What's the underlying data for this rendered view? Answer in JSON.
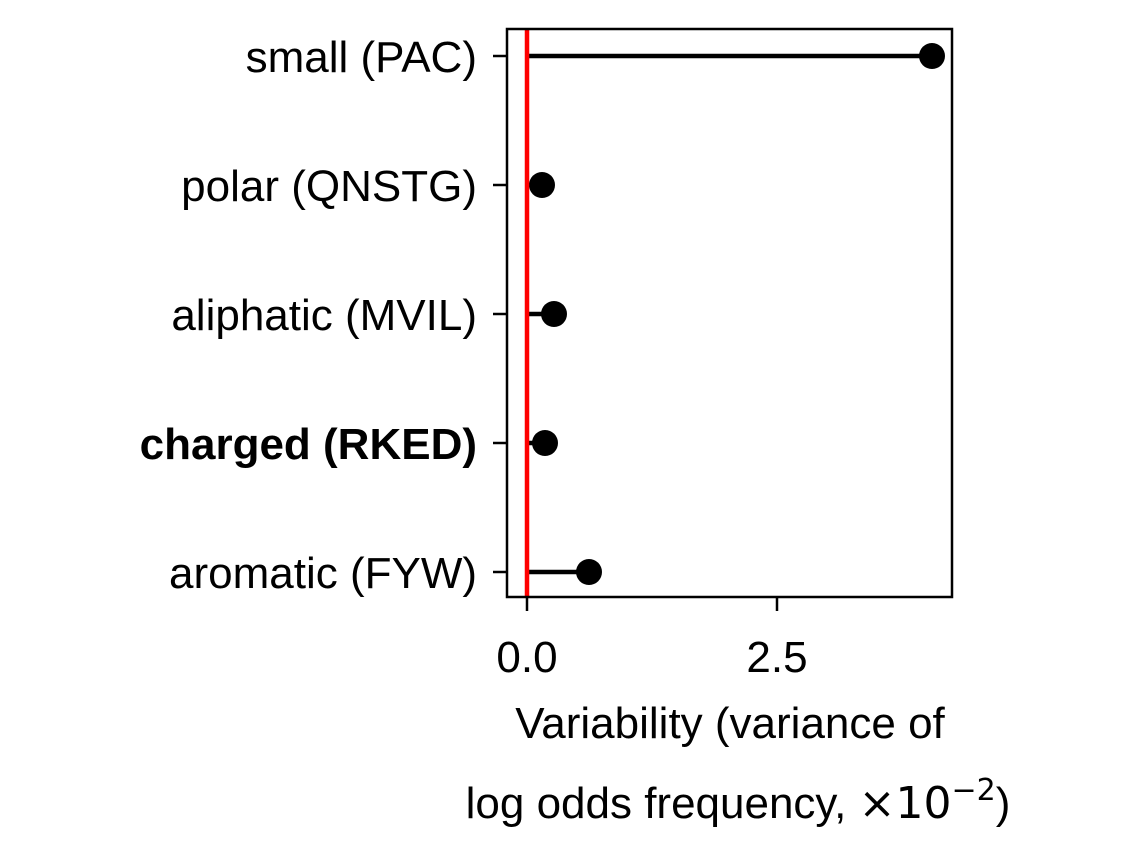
{
  "chart_data": {
    "type": "scatter",
    "style": "lollipop",
    "orientation": "horizontal",
    "categories": [
      "small (PAC)",
      "polar (QNSTG)",
      "aliphatic (MVIL)",
      "charged (RKED)",
      "aromatic (FYW)"
    ],
    "values": [
      4.05,
      0.15,
      0.27,
      0.18,
      0.62
    ],
    "highlight_category": "charged (RKED)",
    "highlight_color": "#a8479a",
    "marker_color": "#000000",
    "reference_line": {
      "x": 0,
      "color": "#ff0000"
    },
    "xlabel": "Variability (variance of",
    "xlabel_line2_prefix": "log odds frequency, ",
    "xlabel_line2_math": "×10",
    "xlabel_line2_exponent": "−2",
    "xlabel_line2_suffix": ")",
    "xticks": [
      0.0,
      2.5
    ],
    "xtick_labels": [
      "0.0",
      "2.5"
    ],
    "xlim": [
      -0.2,
      4.25
    ],
    "grid": false,
    "legend": "none"
  }
}
